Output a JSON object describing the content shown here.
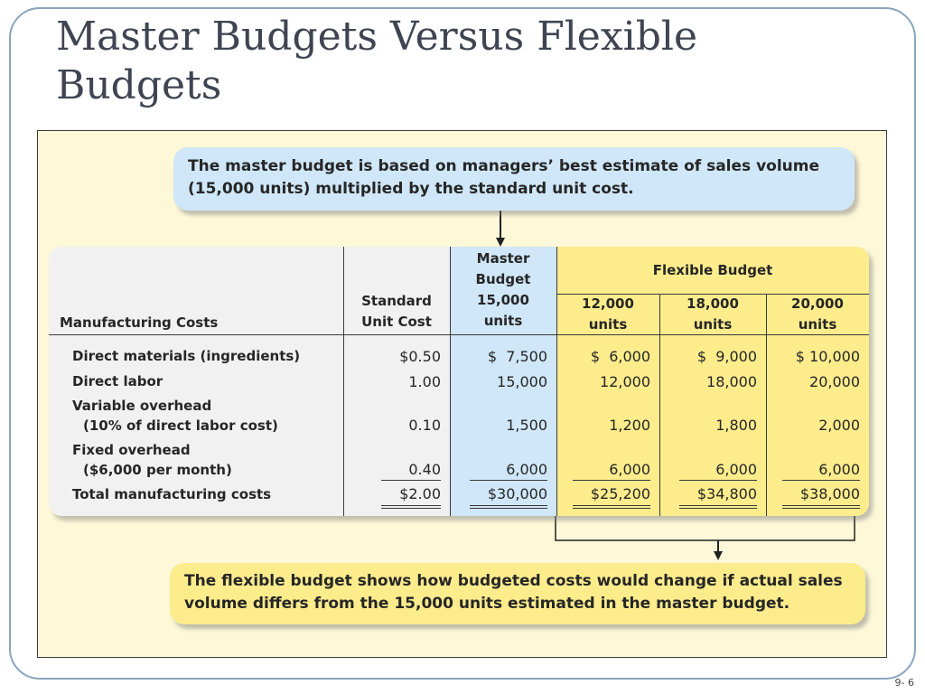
{
  "slide": {
    "title_line1": "Master Budgets Versus Flexible",
    "title_line2": "Budgets",
    "page_number": "9- 6"
  },
  "figure": {
    "top_callout": {
      "line1": "The master budget is based on managers’ best estimate of sales volume",
      "line2": "(15,000 units) multiplied by the standard unit cost."
    },
    "bottom_callout": {
      "line1": "The flexible budget shows how budgeted costs would change if actual sales",
      "line2": "volume differs from the 15,000 units estimated in the master budget."
    },
    "table": {
      "row_header": "Manufacturing Costs",
      "standard_header": [
        "Standard",
        "Unit Cost"
      ],
      "master_header": [
        "Master",
        "Budget",
        "15,000",
        "units"
      ],
      "flexible_header": "Flexible Budget",
      "flexible_columns": [
        [
          "12,000",
          "units"
        ],
        [
          "18,000",
          "units"
        ],
        [
          "20,000",
          "units"
        ]
      ],
      "rows": [
        {
          "label": [
            "Direct materials (ingredients)"
          ],
          "values": [
            "$0.50",
            "$  7,500",
            "$  6,000",
            "$  9,000",
            "$ 10,000"
          ]
        },
        {
          "label": [
            "Direct labor"
          ],
          "values": [
            "1.00",
            "15,000",
            "12,000",
            "18,000",
            "20,000"
          ]
        },
        {
          "label": [
            "Variable overhead",
            "(10% of direct labor cost)"
          ],
          "values": [
            "0.10",
            "1,500",
            "1,200",
            "1,800",
            "2,000"
          ]
        },
        {
          "label": [
            "Fixed overhead",
            "($6,000 per month)"
          ],
          "values": [
            "0.40",
            "6,000",
            "6,000",
            "6,000",
            "6,000"
          ]
        },
        {
          "label": [
            "Total manufacturing costs"
          ],
          "values": [
            "$2.00",
            "$30,000",
            "$25,200",
            "$34,800",
            "$38,000"
          ]
        }
      ]
    }
  },
  "colors": {
    "figure_background": "#fdf8d8",
    "master_highlight": "#cfe7f8",
    "flexible_highlight": "#fcec8c",
    "table_background": "#f1f1f1",
    "title_text": "#3f4452",
    "frame_border": "#8aa4bd"
  }
}
